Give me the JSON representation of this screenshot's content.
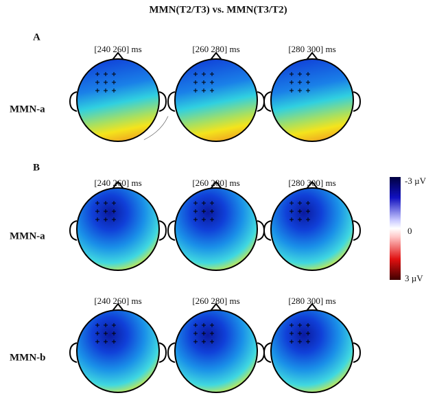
{
  "title": "MMN(T2/T3) vs. MMN(T3/T2)",
  "panels": [
    {
      "label": "A",
      "rows": [
        {
          "label": "MMN-a",
          "times": [
            "[240 260] ms",
            "[260 280] ms",
            "[280 300] ms"
          ]
        }
      ]
    },
    {
      "label": "B",
      "rows": [
        {
          "label": "MMN-a",
          "times": [
            "[240 260] ms",
            "[260 280] ms",
            "[280 300] ms"
          ]
        },
        {
          "label": "MMN-b",
          "times": [
            "[240 260] ms",
            "[260 280] ms",
            "[280 300] ms"
          ]
        }
      ]
    }
  ],
  "colorbar": {
    "labels": [
      "-3 µV",
      "0",
      "3 µV"
    ]
  }
}
